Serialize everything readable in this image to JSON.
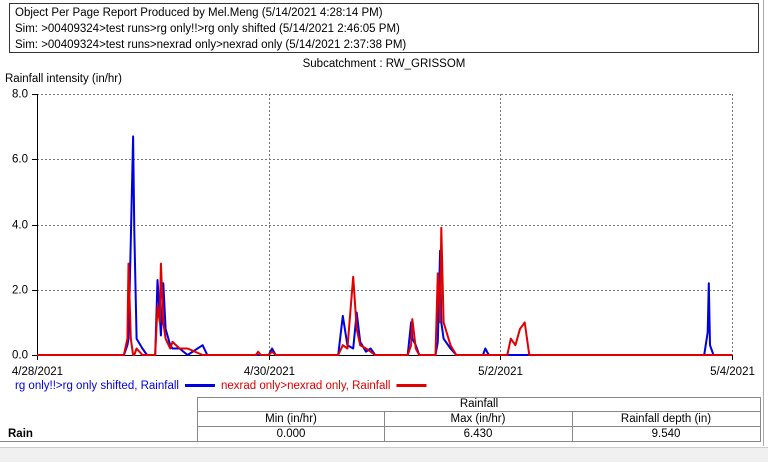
{
  "header": {
    "lines": [
      "Object Per Page Report Produced by Mel.Meng (5/14/2021 4:28:14 PM)",
      "Sim: >00409324>test runs>rg only!!>rg only shifted (5/14/2021 2:46:05 PM)",
      "Sim: >00409324>test runs>nexrad only>nexrad only (5/14/2021 2:37:38 PM)"
    ]
  },
  "chart_data": {
    "type": "line",
    "title": "Subcatchment : RW_GRISSOM",
    "y_label": "Rainfall intensity (in/hr)",
    "x": [
      0,
      0.75,
      0.78,
      0.79,
      0.81,
      0.83,
      0.84,
      0.86,
      0.91,
      0.95,
      1.02,
      1.04,
      1.06,
      1.07,
      1.09,
      1.11,
      1.15,
      1.17,
      1.23,
      1.3,
      1.43,
      1.47,
      1.89,
      1.91,
      1.93,
      2.0,
      2.03,
      2.06,
      2.6,
      2.64,
      2.68,
      2.73,
      2.76,
      2.79,
      2.84,
      2.88,
      2.92,
      3.2,
      3.23,
      3.24,
      3.27,
      3.3,
      3.44,
      3.46,
      3.48,
      3.49,
      3.51,
      3.57,
      3.62,
      3.85,
      3.87,
      3.9,
      4.06,
      4.09,
      4.13,
      4.17,
      4.21,
      4.25,
      5.76,
      5.79,
      5.8,
      5.81,
      5.84,
      6
    ],
    "series": [
      {
        "name": "rg only!!>rg only shifted, Rainfall",
        "color": "#0000e0",
        "values": [
          0,
          0,
          0.3,
          0.5,
          3.5,
          6.7,
          3.8,
          0.5,
          0.2,
          0,
          0,
          2.3,
          1.2,
          0.6,
          2.2,
          0.8,
          0.3,
          0.2,
          0.2,
          0,
          0.3,
          0,
          0,
          0,
          0,
          0,
          0.2,
          0,
          0,
          1.2,
          0.3,
          0.2,
          1.3,
          0.4,
          0.1,
          0.2,
          0,
          0,
          1.0,
          0.5,
          0.3,
          0,
          0,
          0.4,
          3.2,
          1.0,
          0.5,
          0.2,
          0,
          0,
          0.2,
          0,
          0,
          0,
          0,
          0,
          0,
          0,
          0,
          0.7,
          2.2,
          0.3,
          0,
          0
        ]
      },
      {
        "name": "nexrad only>nexrad only, Rainfall",
        "color": "#e00000",
        "values": [
          0,
          0,
          0.5,
          2.8,
          0.5,
          0,
          0,
          0.2,
          0,
          0,
          0,
          1.5,
          1.0,
          2.8,
          1.0,
          0.5,
          0.2,
          0.4,
          0.2,
          0.2,
          0,
          0,
          0,
          0.1,
          0,
          0,
          0.1,
          0,
          0,
          0.3,
          0.2,
          2.4,
          0.8,
          0.3,
          0.2,
          0.1,
          0,
          0,
          0.3,
          1.1,
          0.2,
          0,
          0,
          2.5,
          1.0,
          3.9,
          1.0,
          0.3,
          0,
          0,
          0,
          0,
          0,
          0.5,
          0.3,
          0.8,
          1.0,
          0,
          0,
          0,
          0,
          0,
          0,
          0
        ]
      }
    ],
    "xlim": [
      0,
      6
    ],
    "xticks": [
      {
        "value": 0,
        "label": "4/28/2021"
      },
      {
        "value": 2,
        "label": "4/30/2021"
      },
      {
        "value": 4,
        "label": "5/2/2021"
      },
      {
        "value": 6,
        "label": "5/4/2021"
      }
    ],
    "ylim": [
      0,
      8
    ],
    "yticks": [
      {
        "value": 0,
        "label": "0.0"
      },
      {
        "value": 2,
        "label": "2.0"
      },
      {
        "value": 4,
        "label": "4.0"
      },
      {
        "value": 6,
        "label": "6.0"
      },
      {
        "value": 8,
        "label": "8.0"
      }
    ],
    "grid": true
  },
  "summary_table": {
    "group": "Rainfall",
    "columns": [
      "Min (in/hr)",
      "Max (in/hr)",
      "Rainfall depth (in)"
    ],
    "row_label": "Rain",
    "values": [
      "0.000",
      "6.430",
      "9.540"
    ]
  }
}
